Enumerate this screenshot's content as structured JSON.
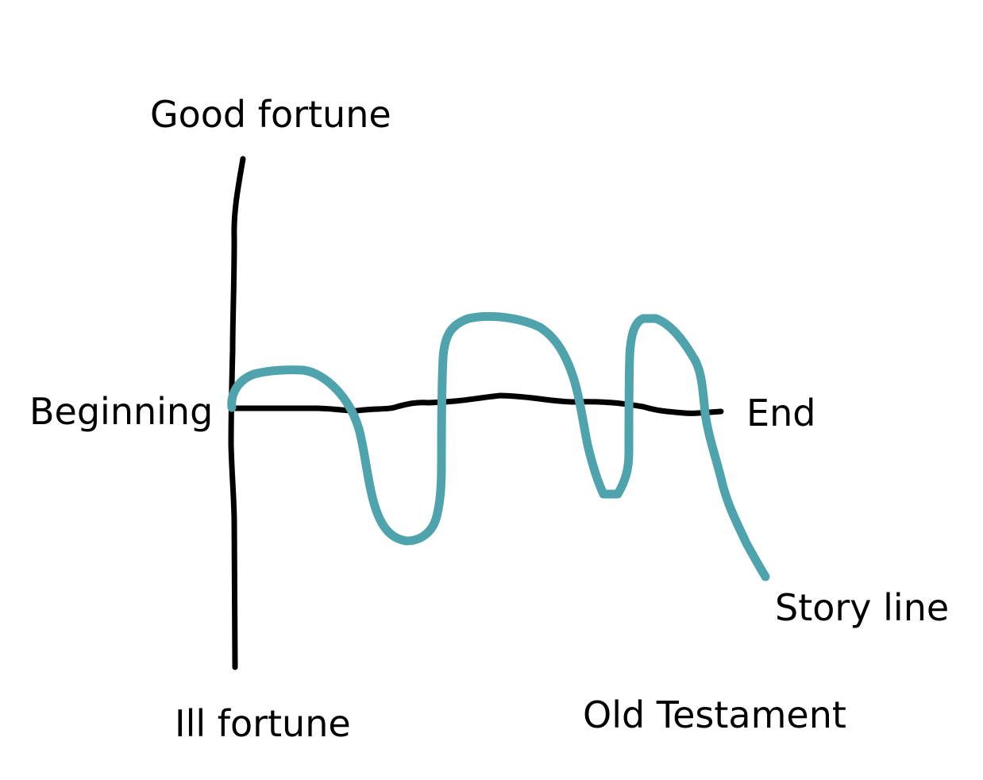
{
  "labels": {
    "good_fortune": "Good fortune",
    "ill_fortune": "Ill fortune",
    "beginning": "Beginning",
    "end": "End",
    "story_line": "Story line",
    "caption": "Old Testament"
  },
  "colors": {
    "axis": "#000000",
    "story_line": "#4fa3ac",
    "background": "#ffffff"
  }
}
